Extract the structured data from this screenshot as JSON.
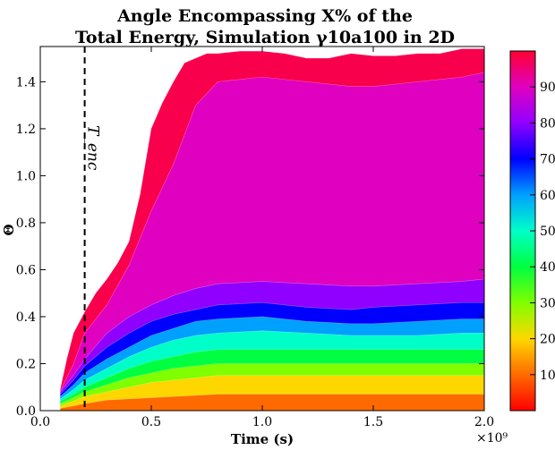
{
  "chart_data": {
    "type": "area",
    "title_line1": "Angle Encompassing X% of the",
    "title_line2": "Total Energy, Simulation γ10a100 in 2D",
    "xlabel": "Time (s)",
    "ylabel": "Θ",
    "x_multiplier": "×10⁹",
    "xlim": [
      0.0,
      2.0
    ],
    "ylim": [
      0.0,
      1.55
    ],
    "x_ticks": [
      "0.0",
      "0.5",
      "1.0",
      "1.5",
      "2.0"
    ],
    "x_tick_values": [
      0.0,
      0.5,
      1.0,
      1.5,
      2.0
    ],
    "y_ticks": [
      "0.0",
      "0.2",
      "0.4",
      "0.6",
      "0.8",
      "1.0",
      "1.2",
      "1.4"
    ],
    "y_tick_values": [
      0.0,
      0.2,
      0.4,
      0.6,
      0.8,
      1.0,
      1.2,
      1.4
    ],
    "colorbar": {
      "range": [
        0,
        100
      ],
      "ticks": [
        "10",
        "20",
        "30",
        "40",
        "50",
        "60",
        "70",
        "80",
        "90"
      ],
      "tick_values": [
        10,
        20,
        30,
        40,
        50,
        60,
        70,
        80,
        90
      ]
    },
    "annotation": {
      "label": "T_enc",
      "x": 0.2
    },
    "envelope": {
      "x": [
        0.09,
        0.12,
        0.15,
        0.2,
        0.25,
        0.3,
        0.35,
        0.4,
        0.45,
        0.5,
        0.55,
        0.6,
        0.65,
        0.7,
        0.75,
        0.8,
        0.9,
        1.0,
        1.1,
        1.2,
        1.3,
        1.4,
        1.5,
        1.6,
        1.7,
        1.8,
        1.9,
        2.0
      ],
      "y": [
        0.09,
        0.22,
        0.33,
        0.42,
        0.5,
        0.56,
        0.63,
        0.72,
        0.92,
        1.2,
        1.31,
        1.4,
        1.48,
        1.5,
        1.52,
        1.52,
        1.53,
        1.53,
        1.52,
        1.5,
        1.5,
        1.52,
        1.51,
        1.51,
        1.52,
        1.52,
        1.54,
        1.54
      ]
    },
    "contour_levels": [
      {
        "level": 10,
        "y": [
          0.01,
          0.02,
          0.03,
          0.045,
          0.05,
          0.055,
          0.06,
          0.065,
          0.07,
          0.07,
          0.07,
          0.07,
          0.07,
          0.07,
          0.07,
          0.07
        ]
      },
      {
        "level": 20,
        "y": [
          0.02,
          0.04,
          0.06,
          0.08,
          0.1,
          0.12,
          0.13,
          0.14,
          0.15,
          0.15,
          0.15,
          0.15,
          0.15,
          0.15,
          0.15,
          0.15
        ]
      },
      {
        "level": 30,
        "y": [
          0.03,
          0.055,
          0.08,
          0.11,
          0.14,
          0.16,
          0.18,
          0.19,
          0.2,
          0.2,
          0.2,
          0.2,
          0.2,
          0.2,
          0.2,
          0.2
        ]
      },
      {
        "level": 40,
        "y": [
          0.04,
          0.07,
          0.1,
          0.14,
          0.18,
          0.21,
          0.23,
          0.25,
          0.26,
          0.26,
          0.26,
          0.26,
          0.26,
          0.26,
          0.26,
          0.26
        ]
      },
      {
        "level": 50,
        "y": [
          0.05,
          0.09,
          0.13,
          0.18,
          0.23,
          0.27,
          0.3,
          0.32,
          0.33,
          0.34,
          0.33,
          0.32,
          0.32,
          0.32,
          0.33,
          0.33
        ]
      },
      {
        "level": 60,
        "y": [
          0.06,
          0.11,
          0.16,
          0.22,
          0.27,
          0.32,
          0.35,
          0.38,
          0.39,
          0.4,
          0.38,
          0.37,
          0.37,
          0.38,
          0.39,
          0.39
        ]
      },
      {
        "level": 70,
        "y": [
          0.07,
          0.13,
          0.19,
          0.27,
          0.33,
          0.38,
          0.41,
          0.43,
          0.45,
          0.46,
          0.44,
          0.43,
          0.44,
          0.45,
          0.46,
          0.46
        ]
      },
      {
        "level": 80,
        "y": [
          0.08,
          0.15,
          0.22,
          0.33,
          0.4,
          0.45,
          0.49,
          0.52,
          0.54,
          0.55,
          0.54,
          0.53,
          0.53,
          0.54,
          0.55,
          0.56
        ]
      },
      {
        "level": 90,
        "y": [
          0.085,
          0.2,
          0.33,
          0.45,
          0.62,
          0.85,
          1.05,
          1.3,
          1.4,
          1.42,
          1.4,
          1.38,
          1.38,
          1.4,
          1.42,
          1.44
        ]
      }
    ],
    "contour_x": [
      0.09,
      0.15,
      0.2,
      0.3,
      0.4,
      0.5,
      0.6,
      0.7,
      0.8,
      1.0,
      1.2,
      1.4,
      1.5,
      1.7,
      1.9,
      2.0
    ]
  }
}
